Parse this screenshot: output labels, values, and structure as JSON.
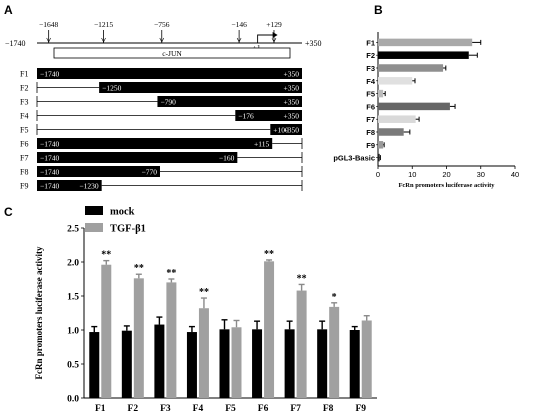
{
  "panels": {
    "a": "A",
    "b": "B",
    "c": "C"
  },
  "chart_data": [
    {
      "type": "diagram",
      "panel": "A",
      "axis": {
        "left_label": "−1740",
        "right_label": "+350"
      },
      "sites": [
        {
          "label": "−1648",
          "pos": -1648
        },
        {
          "label": "−1215",
          "pos": -1215
        },
        {
          "label": "−756",
          "pos": -756
        },
        {
          "label": "−146",
          "pos": -146
        },
        {
          "label": "+129",
          "pos": 129
        }
      ],
      "tss_label": "+1",
      "element_label": "c-JUN",
      "constructs": [
        {
          "name": "F1",
          "start": -1740,
          "end": 350,
          "start_label": "−1740",
          "end_label": "+350"
        },
        {
          "name": "F2",
          "start": -1250,
          "end": 350,
          "start_label": "−1250",
          "end_label": "+350"
        },
        {
          "name": "F3",
          "start": -790,
          "end": 350,
          "start_label": "−790",
          "end_label": "+350"
        },
        {
          "name": "F4",
          "start": -176,
          "end": 350,
          "start_label": "−176",
          "end_label": "+350"
        },
        {
          "name": "F5",
          "start": 100,
          "end": 350,
          "start_label": "+100",
          "end_label": "+350"
        },
        {
          "name": "F6",
          "start": -1740,
          "end": 115,
          "start_label": "−1740",
          "end_label": "+115"
        },
        {
          "name": "F7",
          "start": -1740,
          "end": -160,
          "start_label": "−1740",
          "end_label": "−160"
        },
        {
          "name": "F8",
          "start": -1740,
          "end": -770,
          "start_label": "−1740",
          "end_label": "−770"
        },
        {
          "name": "F9",
          "start": -1740,
          "end": -1230,
          "start_label": "−1740",
          "end_label": "−1230"
        }
      ]
    },
    {
      "type": "bar",
      "orientation": "horizontal",
      "panel": "B",
      "categories": [
        "F1",
        "F2",
        "F3",
        "F4",
        "F5",
        "F6",
        "F7",
        "F8",
        "F9",
        "pGL3-Basic"
      ],
      "values": [
        27.5,
        26.5,
        19,
        10,
        1.5,
        21,
        11,
        7.5,
        1.5,
        0.5
      ],
      "errors": [
        2.5,
        2.5,
        0.8,
        0.8,
        0.6,
        1.5,
        1.0,
        1.8,
        0.3,
        0.2
      ],
      "colors": [
        "#a9a9a9",
        "#000000",
        "#8f8f8f",
        "#e0e0e0",
        "#bcbcbc",
        "#666666",
        "#d9d9d9",
        "#7a7a7a",
        "#9a9a9a",
        "#222222"
      ],
      "xlabel": "FcRn promoters luciferase activity",
      "xlim": [
        0,
        40
      ],
      "xticks": [
        "0",
        "10",
        "20",
        "30",
        "40"
      ]
    },
    {
      "type": "bar",
      "panel": "C",
      "categories": [
        "F1",
        "F2",
        "F3",
        "F4",
        "F5",
        "F6",
        "F7",
        "F8",
        "F9"
      ],
      "series": [
        {
          "name": "mock",
          "color": "#000000",
          "values": [
            0.97,
            0.99,
            1.08,
            0.97,
            1.01,
            1.01,
            1.01,
            1.01,
            1.0
          ],
          "errors": [
            0.08,
            0.07,
            0.11,
            0.08,
            0.14,
            0.12,
            0.12,
            0.12,
            0.05
          ]
        },
        {
          "name": "TGF-β1",
          "color": "#a0a0a0",
          "values": [
            1.96,
            1.76,
            1.7,
            1.32,
            1.04,
            2.01,
            1.58,
            1.34,
            1.14
          ],
          "errors": [
            0.06,
            0.06,
            0.05,
            0.15,
            0.1,
            0.02,
            0.09,
            0.06,
            0.07
          ]
        }
      ],
      "significance": [
        "**",
        "**",
        "**",
        "**",
        "",
        "**",
        "**",
        "*",
        ""
      ],
      "ylabel": "FcRn promoters luciferase activity",
      "ylim": [
        0,
        2.5
      ],
      "yticks": [
        "0.0",
        "0.5",
        "1.0",
        "1.5",
        "2.0",
        "2.5"
      ]
    }
  ]
}
